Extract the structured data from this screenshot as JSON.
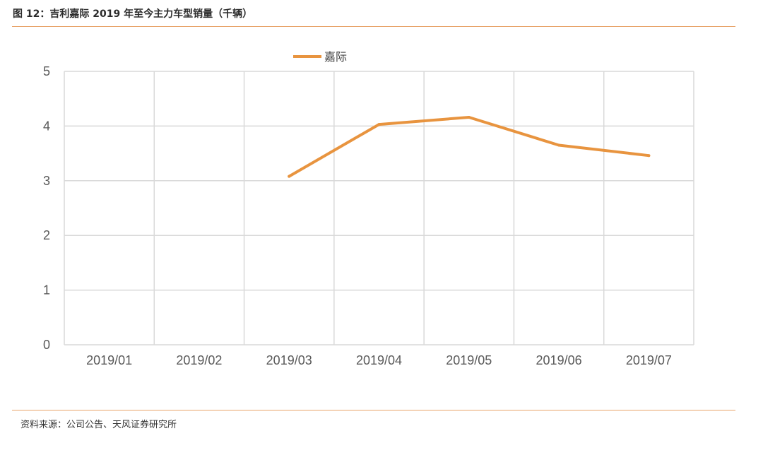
{
  "figure": {
    "title": "图 12：吉利嘉际 2019 年至今主力车型销量（千辆）",
    "source": "资料来源：公司公告、天风证券研究所"
  },
  "colors": {
    "accent_rule": "#e8a46b",
    "series": "#e8943f",
    "grid": "#d9d9d9"
  },
  "chart_data": {
    "type": "line",
    "categories": [
      "2019/01",
      "2019/02",
      "2019/03",
      "2019/04",
      "2019/05",
      "2019/06",
      "2019/07"
    ],
    "series": [
      {
        "name": "嘉际",
        "values": [
          null,
          null,
          3.08,
          4.03,
          4.16,
          3.65,
          3.46
        ]
      }
    ],
    "ylim": [
      0,
      5
    ],
    "yticks": [
      "0",
      "1",
      "2",
      "3",
      "4",
      "5"
    ],
    "grid": true,
    "legend": "top"
  }
}
